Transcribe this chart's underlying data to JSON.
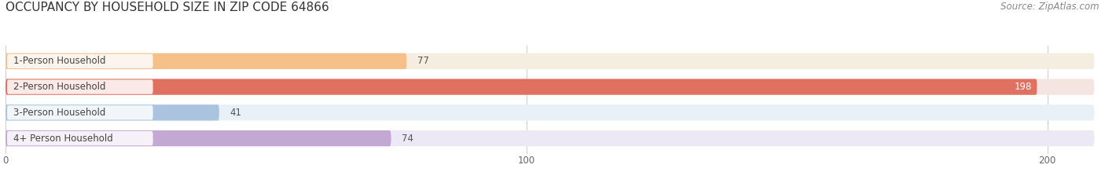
{
  "title": "OCCUPANCY BY HOUSEHOLD SIZE IN ZIP CODE 64866",
  "source": "Source: ZipAtlas.com",
  "categories": [
    "1-Person Household",
    "2-Person Household",
    "3-Person Household",
    "4+ Person Household"
  ],
  "values": [
    77,
    198,
    41,
    74
  ],
  "bar_colors": [
    "#f5c08a",
    "#e07060",
    "#aac4e0",
    "#c4a8d4"
  ],
  "bar_background_colors": [
    "#f5ede0",
    "#f5e5e0",
    "#e8f0f8",
    "#ede8f5"
  ],
  "xlim": [
    0,
    210
  ],
  "xticks": [
    0,
    100,
    200
  ],
  "background_color": "#ffffff",
  "title_fontsize": 11,
  "label_fontsize": 8.5,
  "value_fontsize": 8.5,
  "source_fontsize": 8.5
}
